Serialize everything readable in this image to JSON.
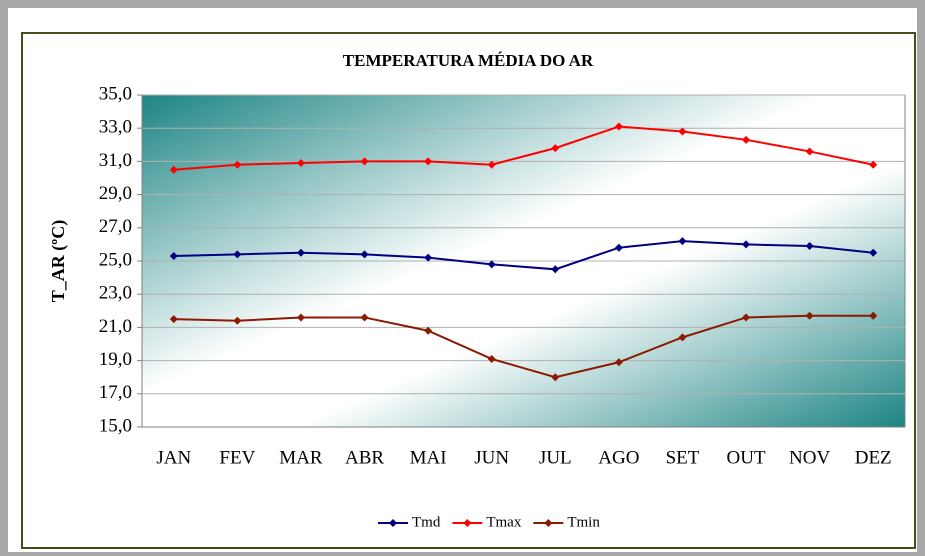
{
  "chart_data": {
    "type": "line",
    "title": "TEMPERATURA MÉDIA DO AR",
    "ylabel": "T_AR (ºC)",
    "categories": [
      "JAN",
      "FEV",
      "MAR",
      "ABR",
      "MAI",
      "JUN",
      "JUL",
      "AGO",
      "SET",
      "OUT",
      "NOV",
      "DEZ"
    ],
    "series": [
      {
        "name": "Tmd",
        "color": "#000080",
        "values": [
          25.3,
          25.4,
          25.5,
          25.4,
          25.2,
          24.8,
          24.5,
          25.8,
          26.2,
          26.0,
          25.9,
          25.5
        ]
      },
      {
        "name": "Tmax",
        "color": "#ff0000",
        "values": [
          30.5,
          30.8,
          30.9,
          31.0,
          31.0,
          30.8,
          31.8,
          33.1,
          32.8,
          32.3,
          31.6,
          30.8
        ]
      },
      {
        "name": "Tmin",
        "color": "#8b1a00",
        "values": [
          21.5,
          21.4,
          21.6,
          21.6,
          20.8,
          19.1,
          18.0,
          18.9,
          20.4,
          21.6,
          21.7,
          21.7
        ]
      }
    ],
    "ylim": [
      15,
      35
    ],
    "yticks": [
      {
        "value": 15,
        "label": "15,0"
      },
      {
        "value": 17,
        "label": "17,0"
      },
      {
        "value": 19,
        "label": "19,0"
      },
      {
        "value": 21,
        "label": "21,0"
      },
      {
        "value": 23,
        "label": "23,0"
      },
      {
        "value": 25,
        "label": "25,0"
      },
      {
        "value": 27,
        "label": "27,0"
      },
      {
        "value": 29,
        "label": "29,0"
      },
      {
        "value": 31,
        "label": "31,0"
      },
      {
        "value": 33,
        "label": "33,0"
      },
      {
        "value": 35,
        "label": "35,0"
      }
    ],
    "grid": true,
    "legend": "bottom"
  }
}
